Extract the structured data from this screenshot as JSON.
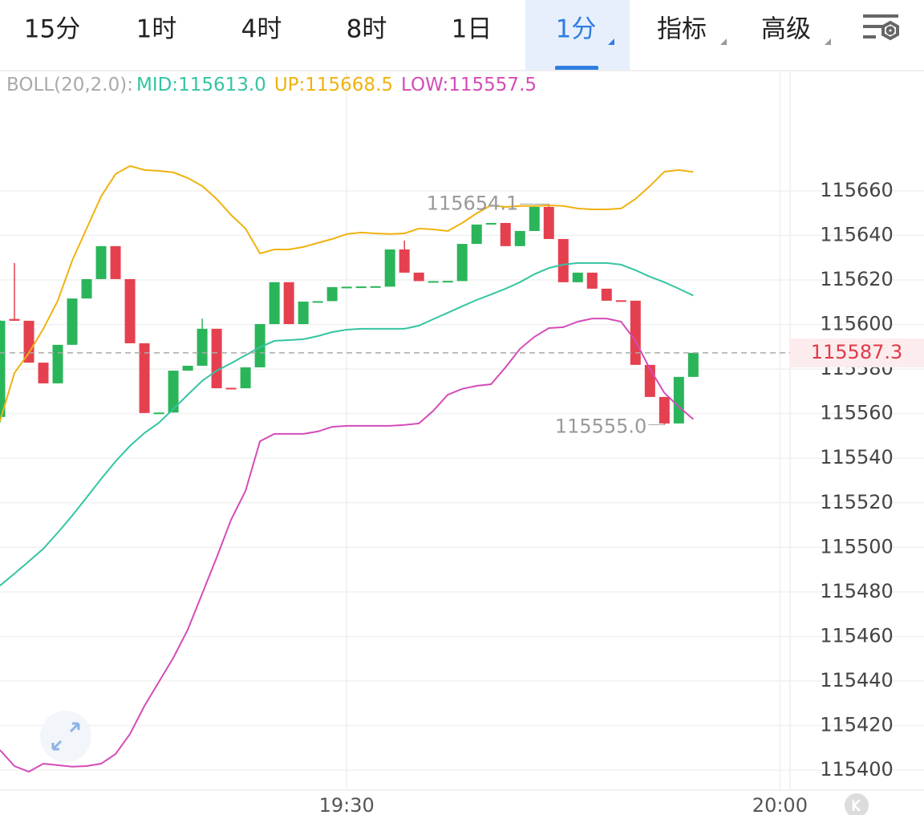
{
  "tabs": [
    {
      "label": "15分"
    },
    {
      "label": "1时"
    },
    {
      "label": "4时"
    },
    {
      "label": "8时"
    },
    {
      "label": "1日"
    },
    {
      "label": "1分",
      "active": true
    },
    {
      "label": "指标"
    },
    {
      "label": "高级"
    }
  ],
  "chart_data": {
    "type": "candlestick",
    "indicator": "BOLL(20,2.0):",
    "x": [
      6,
      7,
      8,
      9,
      10,
      11,
      12,
      13,
      14,
      15,
      16,
      17,
      18,
      19,
      20,
      21,
      22,
      23,
      24,
      25,
      26,
      27,
      28,
      29,
      30,
      31,
      32,
      33,
      34,
      35,
      36,
      37,
      38,
      39,
      40,
      41,
      42,
      43,
      44,
      45,
      46,
      47,
      48,
      49,
      50,
      51,
      52,
      53,
      54
    ],
    "xlim": [
      6,
      60.7
    ],
    "xticks": [
      {
        "value": 30,
        "label": "19:30"
      },
      {
        "value": 60,
        "label": "20:00"
      }
    ],
    "ylim": [
      115391,
      115714
    ],
    "yticks": [
      115400,
      115420,
      115440,
      115460,
      115480,
      115500,
      115520,
      115540,
      115560,
      115580,
      115600,
      115620,
      115640,
      115660
    ],
    "grid": true,
    "up_color": "#2bb55a",
    "down_color": "#e5404f",
    "open": [
      115558.5,
      115602.5,
      115601.7,
      115582.9,
      115573.6,
      115590.9,
      115611.7,
      115620.4,
      115635.2,
      115620.4,
      115591.6,
      115560.3,
      115560.5,
      115579.3,
      115581.5,
      115598.1,
      115571.6,
      115571.4,
      115580.8,
      115600.2,
      115619.0,
      115600.2,
      115610.3,
      115610.5,
      115616.8,
      115617.0,
      115617.0,
      115617.0,
      115633.7,
      115623.3,
      115619.3,
      115619.5,
      115619.5,
      115636.2,
      115645.3,
      115645.6,
      115635.2,
      115642.0,
      115652.8,
      115638.4,
      115619.0,
      115623.3,
      115616.1,
      115610.9,
      115610.7,
      115581.9,
      115567.5,
      115555.6,
      115576.5
    ],
    "high": [
      115601.9,
      115627.6,
      115601.7,
      115582.9,
      115590.9,
      115611.7,
      115620.4,
      115635.2,
      115635.2,
      115620.4,
      115591.6,
      115560.5,
      115579.3,
      115581.5,
      115602.7,
      115598.1,
      115571.6,
      115580.8,
      115600.2,
      115619.0,
      115619.0,
      115610.3,
      115610.5,
      115616.8,
      115617.0,
      115617.1,
      115617.2,
      115633.7,
      115637.7,
      115623.3,
      115619.5,
      115619.6,
      115636.2,
      115644.9,
      115645.6,
      115645.6,
      115642.0,
      115653.2,
      115654.1,
      115638.4,
      115623.3,
      115623.3,
      115616.1,
      115610.9,
      115610.7,
      115581.9,
      115567.5,
      115576.5,
      115587.3
    ],
    "low": [
      115556.0,
      115601.7,
      115582.9,
      115573.6,
      115573.6,
      115590.9,
      115611.7,
      115620.4,
      115620.4,
      115591.6,
      115560.3,
      115560.3,
      115560.5,
      115579.3,
      115581.5,
      115571.4,
      115571.4,
      115571.4,
      115580.8,
      115600.2,
      115600.2,
      115600.2,
      115610.3,
      115610.5,
      115616.8,
      115617.0,
      115617.0,
      115617.0,
      115623.3,
      115619.5,
      115619.3,
      115619.5,
      115619.5,
      115636.2,
      115645.3,
      115635.2,
      115635.2,
      115642.0,
      115638.4,
      115619.0,
      115619.0,
      115616.1,
      115610.7,
      115610.7,
      115581.9,
      115567.5,
      115555.0,
      115555.6,
      115576.5
    ],
    "close": [
      115601.7,
      115601.7,
      115582.9,
      115573.6,
      115590.9,
      115611.7,
      115620.4,
      115635.2,
      115620.4,
      115591.6,
      115560.3,
      115560.5,
      115579.3,
      115581.5,
      115598.1,
      115571.4,
      115571.4,
      115580.8,
      115600.2,
      115619.0,
      115600.2,
      115610.3,
      115610.5,
      115616.8,
      115617.0,
      115617.1,
      115617.2,
      115633.7,
      115623.3,
      115619.5,
      115619.5,
      115619.6,
      115636.2,
      115644.9,
      115645.6,
      115635.2,
      115642.0,
      115652.8,
      115638.4,
      115619.0,
      115623.3,
      115616.1,
      115610.7,
      115610.7,
      115581.9,
      115567.5,
      115555.6,
      115576.5,
      115587.3
    ],
    "extreme_labels": {
      "high": "115654.1",
      "low": "115555.0"
    },
    "series": [
      {
        "name": "MID:",
        "legend_value": "115613.0",
        "color": "#35c4a2",
        "values": [
          115482.8,
          115488.2,
          115493.7,
          115499.4,
          115506.6,
          115514.2,
          115522.4,
          115530.7,
          115538.6,
          115545.5,
          115551.3,
          115555.9,
          115562.1,
          115568.5,
          115574.7,
          115579.3,
          115582.6,
          115586.2,
          115589.8,
          115592.7,
          115593.0,
          115593.4,
          115594.8,
          115596.6,
          115597.7,
          115598.1,
          115598.1,
          115598.1,
          115598.1,
          115599.5,
          115602.4,
          115605.3,
          115608.2,
          115611.0,
          115613.5,
          115616.1,
          115619.0,
          115622.6,
          115625.4,
          115626.9,
          115627.6,
          115627.6,
          115627.6,
          115626.9,
          115624.4,
          115621.5,
          115619.0,
          115616.1,
          115613.0
        ]
      },
      {
        "name": "UP:",
        "legend_value": "115668.5",
        "color": "#efb20f",
        "values": [
          115556.7,
          115578.3,
          115587.3,
          115598.1,
          115610.7,
          115628.7,
          115643.1,
          115657.5,
          115667.6,
          115671.2,
          115669.4,
          115669.0,
          115668.3,
          115665.8,
          115662.2,
          115656.4,
          115649.2,
          115643.1,
          115631.9,
          115633.7,
          115633.7,
          115634.8,
          115636.6,
          115638.4,
          115640.6,
          115641.3,
          115640.9,
          115640.6,
          115640.9,
          115643.1,
          115642.7,
          115642.0,
          115645.6,
          115649.9,
          115653.5,
          115652.8,
          115653.2,
          115653.2,
          115653.5,
          115653.2,
          115652.1,
          115651.7,
          115651.7,
          115652.1,
          115656.4,
          115662.2,
          115668.6,
          115669.4,
          115668.5
        ]
      },
      {
        "name": "LOW:",
        "legend_value": "115557.5",
        "color": "#d44cb8",
        "values": [
          115409.0,
          115401.8,
          115399.3,
          115402.9,
          115402.2,
          115401.5,
          115401.8,
          115402.9,
          115407.2,
          115416.2,
          115428.8,
          115439.6,
          115450.4,
          115463.0,
          115479.2,
          115495.4,
          115512.4,
          115525.3,
          115547.6,
          115550.9,
          115550.9,
          115550.9,
          115552.0,
          115554.1,
          115554.5,
          115554.5,
          115554.5,
          115554.5,
          115554.9,
          115555.6,
          115561.3,
          115568.5,
          115571.1,
          115572.5,
          115573.2,
          115580.8,
          115589.1,
          115594.5,
          115598.4,
          115598.8,
          115601.3,
          115602.7,
          115602.7,
          115601.3,
          115592.7,
          115580.1,
          115569.3,
          115563.1,
          115557.5
        ]
      }
    ]
  }
}
